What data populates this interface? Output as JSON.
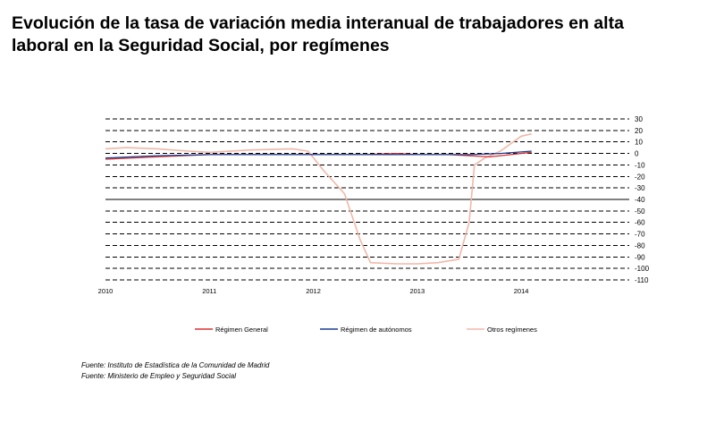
{
  "title_line1": "Evolución de la tasa de variación media interanual de trabajadores en alta",
  "title_line2": "laboral en la Seguridad Social, por  regímenes",
  "source_1": "Fuente: Instituto de Estadística de la Comunidad de Madrid",
  "source_2": "Fuente: Ministerio de Empleo y Seguridad Social",
  "chart_data": {
    "type": "line",
    "title": "",
    "xlabel": "",
    "ylabel": "",
    "x_ticks": [
      "2010",
      "2011",
      "2012",
      "2013",
      "2014"
    ],
    "xlim": [
      2010,
      2015.04
    ],
    "ylim": [
      -110,
      30
    ],
    "y_ticks": [
      30,
      20,
      10,
      0,
      -10,
      -20,
      -30,
      -40,
      -50,
      -60,
      -70,
      -80,
      -90,
      -100,
      -110
    ],
    "y_axis_position": "right",
    "grid": "horizontal dashed",
    "legend_position": "bottom",
    "series": [
      {
        "name": "Régimen General",
        "color": "#d83030",
        "x": [
          2010.0,
          2010.5,
          2011.0,
          2011.5,
          2012.0,
          2012.5,
          2012.8,
          2013.0,
          2013.3,
          2013.5,
          2013.7,
          2013.9,
          2014.1
        ],
        "y": [
          -5,
          -3,
          -1,
          -1,
          -1,
          -1,
          0,
          -1,
          -1,
          -2,
          -3,
          -1,
          1
        ]
      },
      {
        "name": "Régimen de autónomos",
        "color": "#1a3d8f",
        "x": [
          2010.0,
          2010.5,
          2011.0,
          2011.5,
          2012.0,
          2012.5,
          2013.0,
          2013.5,
          2013.8,
          2014.1
        ],
        "y": [
          -4,
          -2,
          -1,
          -1,
          -1,
          -1,
          -1,
          -1,
          0,
          2
        ]
      },
      {
        "name": "Otros regímenes",
        "color": "#f0b8a8",
        "x": [
          2010.0,
          2010.2,
          2010.5,
          2010.8,
          2011.0,
          2011.4,
          2011.8,
          2011.95,
          2012.1,
          2012.3,
          2012.45,
          2012.55,
          2012.8,
          2013.0,
          2013.2,
          2013.4,
          2013.5,
          2013.55,
          2013.65,
          2013.8,
          2014.0,
          2014.1
        ],
        "y": [
          4,
          5,
          4,
          2,
          1,
          3,
          4,
          2,
          -15,
          -35,
          -75,
          -95,
          -96,
          -96,
          -95,
          -92,
          -60,
          -10,
          -4,
          2,
          15,
          17
        ]
      }
    ]
  }
}
